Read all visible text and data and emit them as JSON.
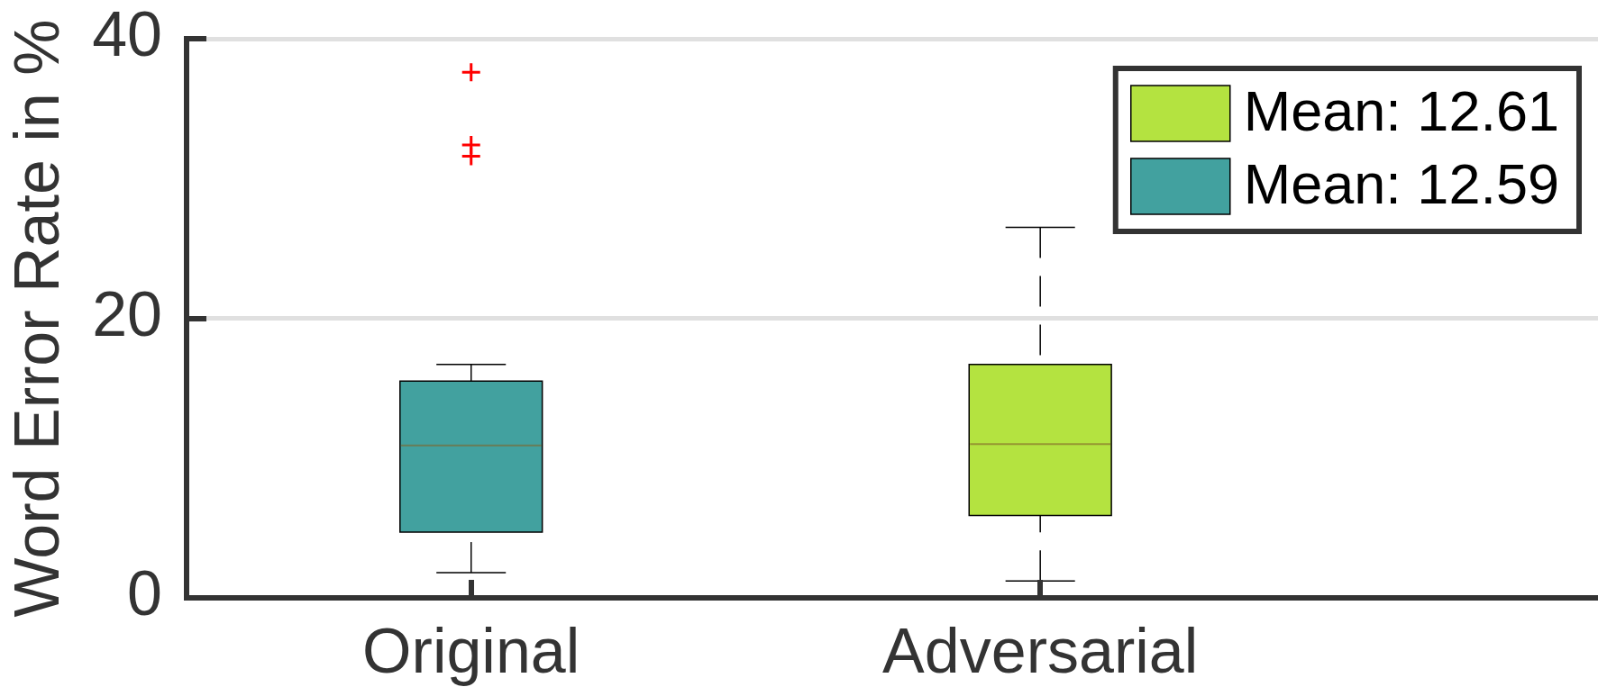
{
  "chart_data": {
    "type": "box",
    "ylabel": "Word Error Rate in %",
    "categories": [
      "Original",
      "Adversarial"
    ],
    "series": [
      {
        "name": "Mean: 12.61",
        "color": "#b4e340",
        "boxes": [
          null,
          {
            "low": 1.2,
            "q1": 5.9,
            "median": 11.0,
            "q3": 16.7,
            "high": 26.5
          }
        ]
      },
      {
        "name": "Mean: 12.59",
        "color": "#42a19f",
        "boxes": [
          {
            "low": 1.8,
            "q1": 4.7,
            "median": 10.9,
            "q3": 15.5,
            "high": 16.7,
            "outliers": [
              37.6,
              32.4,
              31.6
            ]
          },
          null
        ]
      }
    ],
    "ylim": [
      0,
      40
    ],
    "yticks": [
      0,
      20,
      40
    ],
    "grid": "y",
    "legend": "top right"
  }
}
